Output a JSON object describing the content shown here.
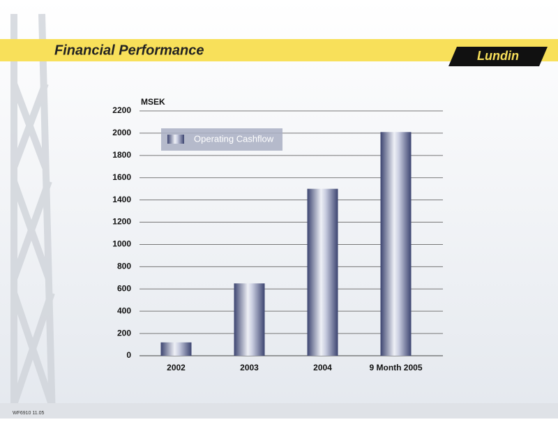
{
  "header": {
    "title": "Financial Performance",
    "logo": "Lundin"
  },
  "footer": {
    "code": "WF6910 11.05"
  },
  "chart_data": {
    "type": "bar",
    "y_label": "MSEK",
    "categories": [
      "2002",
      "2003",
      "2004",
      "9 Month 2005"
    ],
    "series": [
      {
        "name": "Operating Cashflow",
        "color": "#5b6690",
        "values": [
          120,
          650,
          1500,
          2010
        ]
      }
    ],
    "ylim": [
      0,
      2200
    ],
    "yticks": [
      0,
      200,
      400,
      600,
      800,
      1000,
      1200,
      1400,
      1600,
      1800,
      2000,
      2200
    ],
    "grid": true,
    "legend": "top-left"
  }
}
